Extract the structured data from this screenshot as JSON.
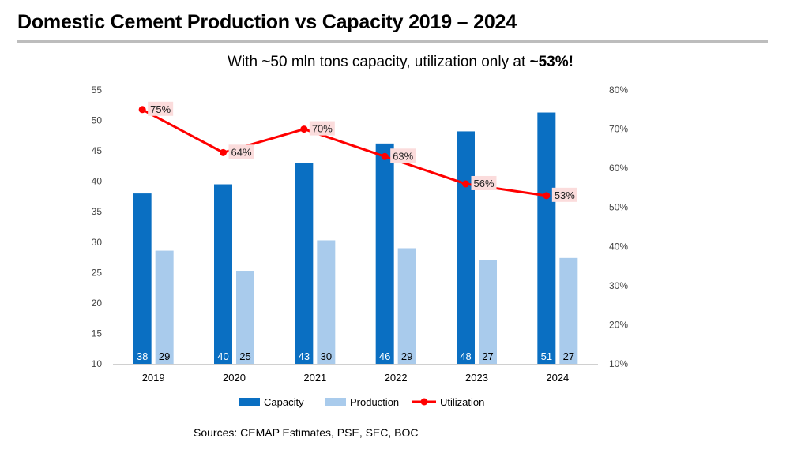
{
  "header": {
    "title": "Domestic Cement Production vs Capacity 2019 – 2024"
  },
  "subtitle": {
    "text": "With ~50 mln tons capacity, utilization only at ",
    "highlight": "~53%!"
  },
  "source": "Sources: CEMAP Estimates, PSE, SEC, BOC",
  "colors": {
    "capacity": "#0a6fc2",
    "production": "#a9cbec",
    "utilization": "#ff0000",
    "utilization_label_bg": "#fbdcdc",
    "title_rule": "#bdbdbd"
  },
  "chart_data": {
    "type": "bar",
    "categories": [
      "2019",
      "2020",
      "2021",
      "2022",
      "2023",
      "2024"
    ],
    "series": [
      {
        "name": "Capacity",
        "kind": "bar",
        "axis": "left",
        "values": [
          38,
          39.5,
          43,
          46.2,
          48.2,
          51.3
        ],
        "labels": [
          "38",
          "40",
          "43",
          "46",
          "48",
          "51"
        ]
      },
      {
        "name": "Production",
        "kind": "bar",
        "axis": "left",
        "values": [
          28.6,
          25.3,
          30.3,
          29,
          27.1,
          27.4
        ],
        "labels": [
          "29",
          "25",
          "30",
          "29",
          "27",
          "27"
        ]
      },
      {
        "name": "Utilization",
        "kind": "line",
        "axis": "right",
        "values": [
          75,
          64,
          70,
          63,
          56,
          53
        ],
        "labels": [
          "75%",
          "64%",
          "70%",
          "63%",
          "56%",
          "53%"
        ]
      }
    ],
    "y_left": {
      "range": [
        10,
        55
      ],
      "ticks": [
        "10",
        "15",
        "20",
        "25",
        "30",
        "35",
        "40",
        "45",
        "50",
        "55"
      ]
    },
    "y_right": {
      "range": [
        10,
        80
      ],
      "ticks": [
        "10%",
        "20%",
        "30%",
        "40%",
        "50%",
        "60%",
        "70%",
        "80%"
      ]
    },
    "grid": false,
    "legend": {
      "position": "bottom",
      "items": [
        "Capacity",
        "Production",
        "Utilization"
      ]
    }
  }
}
